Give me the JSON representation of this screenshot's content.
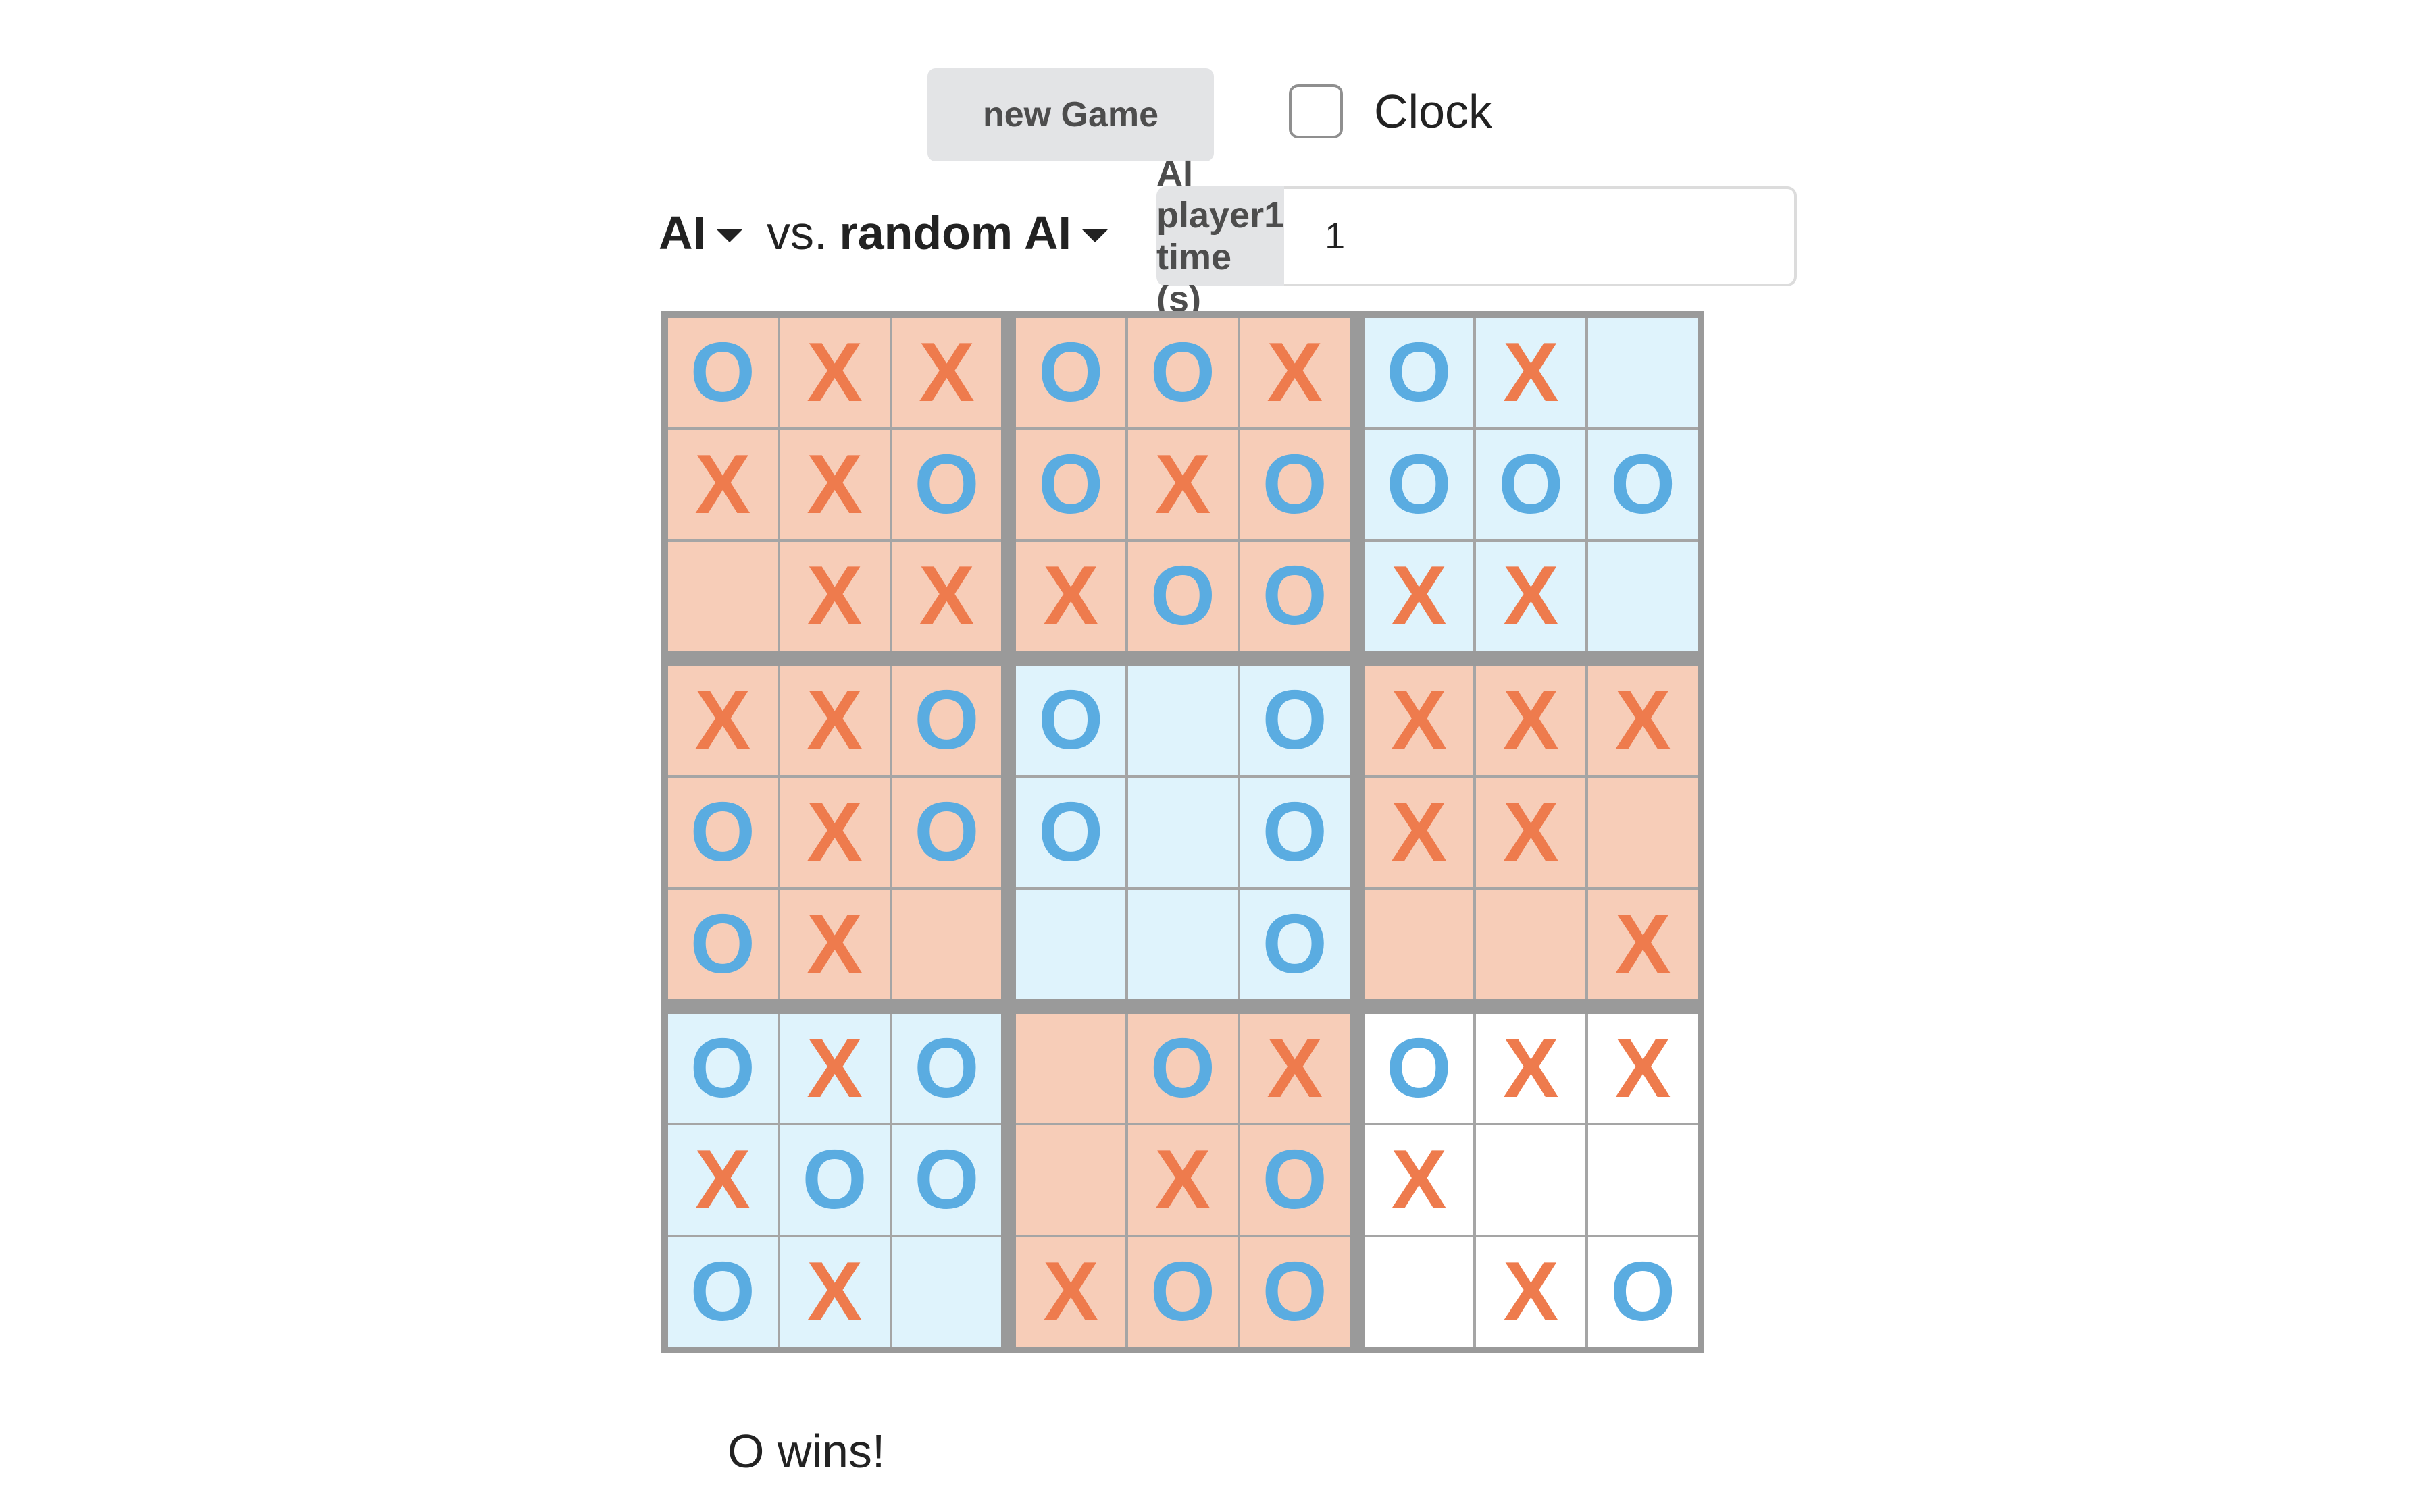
{
  "controls": {
    "new_game_label": "new Game",
    "clock_label": "Clock",
    "clock_checked": false
  },
  "players": {
    "player1": "AI",
    "vs_label": "vs.",
    "player2": "random AI"
  },
  "time_setting": {
    "label": "AI player1 time (s)",
    "value": "1"
  },
  "colors": {
    "x_mark": "#ee7b4d",
    "o_mark": "#5aace1",
    "x_won_board": "#f7cdb8",
    "o_won_board": "#dff3fc",
    "open_board": "#ffffff"
  },
  "board": {
    "sub_boards": [
      {
        "owner": "X",
        "cells": [
          "O",
          "X",
          "X",
          "X",
          "X",
          "O",
          "",
          "X",
          "X"
        ]
      },
      {
        "owner": "X",
        "cells": [
          "O",
          "O",
          "X",
          "O",
          "X",
          "O",
          "X",
          "O",
          "O"
        ]
      },
      {
        "owner": "O",
        "cells": [
          "O",
          "X",
          "",
          "O",
          "O",
          "O",
          "X",
          "X",
          ""
        ]
      },
      {
        "owner": "X",
        "cells": [
          "X",
          "X",
          "O",
          "O",
          "X",
          "O",
          "O",
          "X",
          ""
        ]
      },
      {
        "owner": "O",
        "cells": [
          "O",
          "",
          "O",
          "O",
          "",
          "O",
          "",
          "",
          "O"
        ]
      },
      {
        "owner": "X",
        "cells": [
          "X",
          "X",
          "X",
          "X",
          "X",
          "",
          "",
          "",
          "X"
        ]
      },
      {
        "owner": "O",
        "cells": [
          "O",
          "X",
          "O",
          "X",
          "O",
          "O",
          "O",
          "X",
          ""
        ]
      },
      {
        "owner": "X",
        "cells": [
          "",
          "O",
          "X",
          "",
          "X",
          "O",
          "X",
          "O",
          "O"
        ]
      },
      {
        "owner": "",
        "cells": [
          "O",
          "X",
          "X",
          "X",
          "",
          "",
          "",
          "X",
          "O"
        ]
      }
    ]
  },
  "status": {
    "message": "O wins!"
  }
}
